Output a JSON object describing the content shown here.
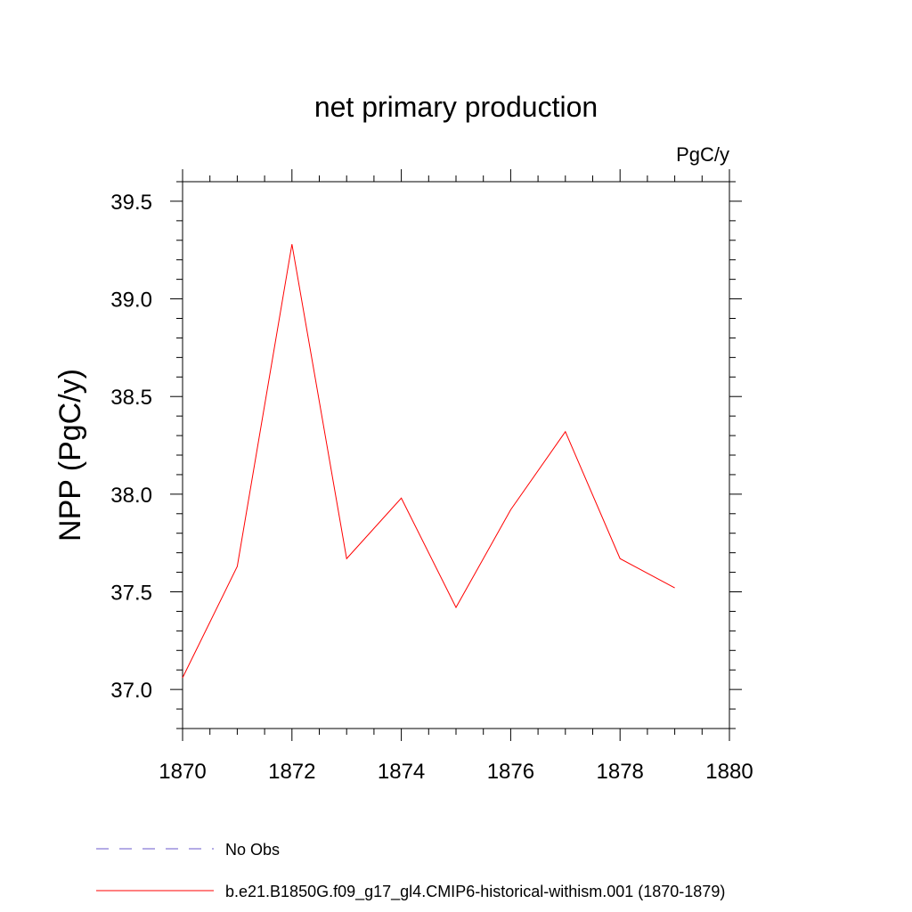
{
  "chart_data": {
    "type": "line",
    "title": "net primary production",
    "units_label": "PgC/y",
    "ylabel": "NPP  (PgC/y)",
    "xlabel": "",
    "xlim": [
      1870,
      1880
    ],
    "ylim": [
      36.8,
      39.6
    ],
    "x_ticks": [
      1870,
      1872,
      1874,
      1876,
      1878,
      1880
    ],
    "y_ticks": [
      37.0,
      37.5,
      38.0,
      38.5,
      39.0,
      39.5
    ],
    "x_tick_labels": [
      "1870",
      "1872",
      "1874",
      "1876",
      "1878",
      "1880"
    ],
    "y_tick_labels": [
      "37.0",
      "37.5",
      "38.0",
      "38.5",
      "39.0",
      "39.5"
    ],
    "grid": false,
    "legend_position": "bottom",
    "series": [
      {
        "name": "b.e21.B1850G.f09_g17_gl4.CMIP6-historical-withism.001 (1870-1879)",
        "color": "#ff0000",
        "style": "solid",
        "x": [
          1870,
          1871,
          1872,
          1873,
          1874,
          1875,
          1876,
          1877,
          1878,
          1879
        ],
        "values": [
          37.06,
          37.63,
          39.28,
          37.67,
          37.98,
          37.42,
          37.92,
          38.32,
          37.67,
          37.52
        ]
      }
    ],
    "legend": [
      {
        "label": "No Obs",
        "color": "#6a5acd",
        "style": "dashed"
      },
      {
        "label": "b.e21.B1850G.f09_g17_gl4.CMIP6-historical-withism.001 (1870-1879)",
        "color": "#ff0000",
        "style": "solid"
      }
    ]
  }
}
